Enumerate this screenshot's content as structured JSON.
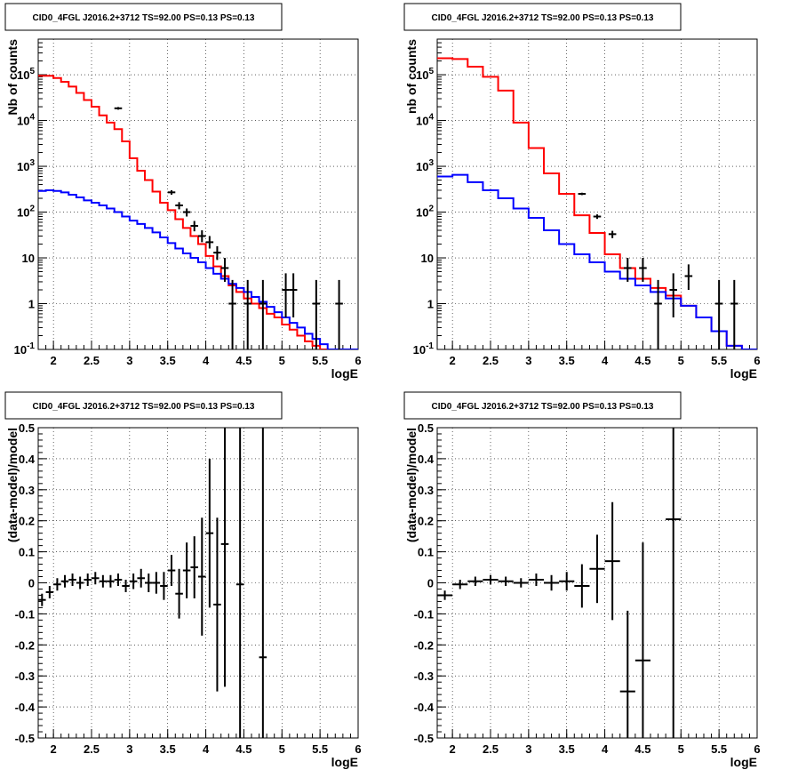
{
  "chart_data": [
    {
      "type": "line",
      "title": "CID0_4FGL J2016.2+3712 TS=92.00 PS=0.13 PS=0.13",
      "xlabel": "logE",
      "ylabel": "Nb of counts",
      "xlim": [
        1.8,
        6
      ],
      "ylim": [
        0.1,
        600000
      ],
      "yscale": "log",
      "grid": true,
      "x_ticks": [
        "2",
        "2.5",
        "3",
        "3.5",
        "4",
        "4.5",
        "5",
        "5.5",
        "6"
      ],
      "y_ticks": [
        "10^-1",
        "1",
        "10",
        "10^2",
        "10^3",
        "10^4",
        "10^5"
      ],
      "bin_edges": [
        1.8,
        1.9,
        2.0,
        2.1,
        2.2,
        2.3,
        2.4,
        2.5,
        2.6,
        2.7,
        2.8,
        2.9,
        3.0,
        3.1,
        3.2,
        3.3,
        3.4,
        3.5,
        3.6,
        3.7,
        3.8,
        3.9,
        4.0,
        4.1,
        4.2,
        4.3,
        4.4,
        4.5,
        4.6,
        4.7,
        4.8,
        4.9,
        5.0,
        5.1,
        5.2,
        5.3,
        5.4,
        5.5,
        5.6,
        5.7,
        5.8,
        5.9,
        6.0
      ],
      "series": [
        {
          "color": "#ff0000",
          "values": [
            95000,
            95000,
            85000,
            70000,
            55000,
            40000,
            28000,
            20000,
            13000,
            9000,
            6500,
            3500,
            1500,
            800,
            500,
            280,
            160,
            110,
            70,
            45,
            30,
            20,
            11,
            6.5,
            4.0,
            2.5,
            1.8,
            1.3,
            1.0,
            0.8,
            0.6,
            0.5,
            0.35,
            0.27,
            0.2,
            0.15,
            0.12,
            0.1,
            0.1,
            0.1,
            0.1,
            0.1
          ]
        },
        {
          "color": "#0000ff",
          "values": [
            290,
            300,
            290,
            270,
            240,
            210,
            180,
            160,
            140,
            120,
            100,
            80,
            65,
            55,
            45,
            36,
            28,
            21,
            16,
            12.5,
            10,
            8,
            6,
            4.5,
            3.5,
            2.7,
            2.2,
            1.8,
            1.4,
            1.1,
            0.85,
            0.65,
            0.5,
            0.38,
            0.3,
            0.22,
            0.17,
            0.13,
            0.1,
            0.1,
            0.1,
            0.1
          ]
        },
        {
          "style": "errorbar",
          "color": "#000000",
          "points": [
            {
              "x": 2.85,
              "y": 18500,
              "yerr_lo": 1200,
              "yerr_hi": 1200
            },
            {
              "x": 3.55,
              "y": 270,
              "yerr_lo": 30,
              "yerr_hi": 30
            },
            {
              "x": 3.65,
              "y": 140,
              "yerr_lo": 25,
              "yerr_hi": 25
            },
            {
              "x": 3.75,
              "y": 100,
              "yerr_lo": 20,
              "yerr_hi": 20
            },
            {
              "x": 3.85,
              "y": 50,
              "yerr_lo": 12,
              "yerr_hi": 14
            },
            {
              "x": 3.95,
              "y": 30,
              "yerr_lo": 8,
              "yerr_hi": 10
            },
            {
              "x": 4.05,
              "y": 22,
              "yerr_lo": 6,
              "yerr_hi": 8
            },
            {
              "x": 4.15,
              "y": 13,
              "yerr_lo": 4,
              "yerr_hi": 5
            },
            {
              "x": 4.25,
              "y": 6,
              "yerr_lo": 3,
              "yerr_hi": 4
            },
            {
              "x": 4.35,
              "y": 1,
              "yerr_lo": 0.95,
              "yerr_hi": 2.3
            },
            {
              "x": 4.55,
              "y": 1,
              "yerr_lo": 0.95,
              "yerr_hi": 2.3
            },
            {
              "x": 4.75,
              "y": 1,
              "yerr_lo": 0.95,
              "yerr_hi": 2.3
            },
            {
              "x": 5.05,
              "y": 2,
              "yerr_lo": 1.5,
              "yerr_hi": 2.6
            },
            {
              "x": 5.15,
              "y": 2,
              "yerr_lo": 1.5,
              "yerr_hi": 2.6
            },
            {
              "x": 5.45,
              "y": 1,
              "yerr_lo": 0.95,
              "yerr_hi": 2.3
            },
            {
              "x": 5.75,
              "y": 1,
              "yerr_lo": 0.95,
              "yerr_hi": 2.3
            }
          ]
        }
      ]
    },
    {
      "type": "line",
      "title": "CID0_4FGL J2016.2+3712 TS=92.00 PS=0.13 PS=0.13",
      "xlabel": "logE",
      "ylabel": "nb of counts",
      "xlim": [
        1.8,
        6
      ],
      "ylim": [
        0.1,
        600000
      ],
      "yscale": "log",
      "grid": true,
      "x_ticks": [
        "2",
        "2.5",
        "3",
        "3.5",
        "4",
        "4.5",
        "5",
        "5.5",
        "6"
      ],
      "y_ticks": [
        "10^-1",
        "1",
        "10",
        "10^2",
        "10^3",
        "10^4",
        "10^5"
      ],
      "bin_edges": [
        1.8,
        2.0,
        2.2,
        2.4,
        2.6,
        2.8,
        3.0,
        3.2,
        3.4,
        3.6,
        3.8,
        4.0,
        4.2,
        4.4,
        4.6,
        4.8,
        5.0,
        5.2,
        5.4,
        5.6,
        5.8,
        6.0
      ],
      "series": [
        {
          "color": "#ff0000",
          "values": [
            230000,
            220000,
            150000,
            90000,
            45000,
            9000,
            2500,
            700,
            250,
            85,
            35,
            12,
            6,
            3.5,
            2.2,
            1.5,
            0.9,
            0.5,
            0.25,
            0.12,
            0.1
          ]
        },
        {
          "color": "#0000ff",
          "values": [
            600,
            650,
            450,
            300,
            200,
            120,
            75,
            40,
            20,
            12,
            8,
            5,
            3.5,
            2.5,
            1.8,
            1.3,
            0.9,
            0.5,
            0.25,
            0.12,
            0.1
          ]
        },
        {
          "style": "errorbar",
          "color": "#000000",
          "points": [
            {
              "x": 3.7,
              "y": 250,
              "yerr_lo": 15,
              "yerr_hi": 15
            },
            {
              "x": 3.9,
              "y": 80,
              "yerr_lo": 9,
              "yerr_hi": 9
            },
            {
              "x": 4.1,
              "y": 33,
              "yerr_lo": 6,
              "yerr_hi": 6
            },
            {
              "x": 4.3,
              "y": 6,
              "yerr_lo": 3,
              "yerr_hi": 4
            },
            {
              "x": 4.5,
              "y": 6,
              "yerr_lo": 3,
              "yerr_hi": 4
            },
            {
              "x": 4.7,
              "y": 1,
              "yerr_lo": 0.95,
              "yerr_hi": 2.3
            },
            {
              "x": 4.9,
              "y": 2,
              "yerr_lo": 1.5,
              "yerr_hi": 2.6
            },
            {
              "x": 5.1,
              "y": 4,
              "yerr_lo": 2,
              "yerr_hi": 3.2
            },
            {
              "x": 5.5,
              "y": 1,
              "yerr_lo": 0.95,
              "yerr_hi": 2.3
            },
            {
              "x": 5.7,
              "y": 1,
              "yerr_lo": 0.95,
              "yerr_hi": 2.3
            }
          ]
        }
      ]
    },
    {
      "type": "scatter",
      "title": "CID0_4FGL J2016.2+3712 TS=92.00 PS=0.13 PS=0.13",
      "xlabel": "logE",
      "ylabel": "(data-model)/model",
      "xlim": [
        1.8,
        6
      ],
      "ylim": [
        -0.5,
        0.5
      ],
      "grid": true,
      "x_ticks": [
        "2",
        "2.5",
        "3",
        "3.5",
        "4",
        "4.5",
        "5",
        "5.5",
        "6"
      ],
      "y_ticks": [
        "-0.5",
        "-0.4",
        "-0.3",
        "-0.2",
        "-0.1",
        "0",
        "0.1",
        "0.2",
        "0.3",
        "0.4",
        "0.5"
      ],
      "series": [
        {
          "style": "errorbar",
          "color": "#000000",
          "xerr": 0.05,
          "points": [
            {
              "x": 1.85,
              "y": -0.055,
              "yerr": 0.02
            },
            {
              "x": 1.95,
              "y": -0.03,
              "yerr": 0.02
            },
            {
              "x": 2.05,
              "y": -0.005,
              "yerr": 0.02
            },
            {
              "x": 2.15,
              "y": 0.005,
              "yerr": 0.02
            },
            {
              "x": 2.25,
              "y": 0.01,
              "yerr": 0.02
            },
            {
              "x": 2.35,
              "y": 0.0,
              "yerr": 0.02
            },
            {
              "x": 2.45,
              "y": 0.01,
              "yerr": 0.02
            },
            {
              "x": 2.55,
              "y": 0.015,
              "yerr": 0.02
            },
            {
              "x": 2.65,
              "y": 0.005,
              "yerr": 0.02
            },
            {
              "x": 2.75,
              "y": 0.005,
              "yerr": 0.02
            },
            {
              "x": 2.85,
              "y": 0.01,
              "yerr": 0.02
            },
            {
              "x": 2.95,
              "y": -0.01,
              "yerr": 0.02
            },
            {
              "x": 3.05,
              "y": 0.005,
              "yerr": 0.025
            },
            {
              "x": 3.15,
              "y": 0.015,
              "yerr": 0.03
            },
            {
              "x": 3.25,
              "y": 0.0,
              "yerr": 0.03
            },
            {
              "x": 3.35,
              "y": 0.0,
              "yerr": 0.035
            },
            {
              "x": 3.45,
              "y": -0.01,
              "yerr": 0.045
            },
            {
              "x": 3.55,
              "y": 0.04,
              "yerr": 0.05
            },
            {
              "x": 3.65,
              "y": -0.035,
              "yerr": 0.08
            },
            {
              "x": 3.75,
              "y": 0.04,
              "yerr": 0.09
            },
            {
              "x": 3.85,
              "y": 0.05,
              "yerr": 0.1
            },
            {
              "x": 3.95,
              "y": 0.02,
              "yerr": 0.19
            },
            {
              "x": 4.05,
              "y": 0.16,
              "yerr": 0.24
            },
            {
              "x": 4.15,
              "y": -0.07,
              "yerr": 0.28
            },
            {
              "x": 4.25,
              "y": 0.125,
              "yerr": 0.46
            },
            {
              "x": 4.45,
              "y": -0.005,
              "yerr": 0.75
            },
            {
              "x": 4.75,
              "y": -0.24,
              "yerr": 0.9
            }
          ]
        }
      ]
    },
    {
      "type": "scatter",
      "title": "CID0_4FGL J2016.2+3712 TS=92.00 PS=0.13 PS=0.13",
      "xlabel": "logE",
      "ylabel": "(data-model)/model",
      "xlim": [
        1.8,
        6
      ],
      "ylim": [
        -0.5,
        0.5
      ],
      "grid": true,
      "x_ticks": [
        "2",
        "2.5",
        "3",
        "3.5",
        "4",
        "4.5",
        "5",
        "5.5",
        "6"
      ],
      "y_ticks": [
        "-0.5",
        "-0.4",
        "-0.3",
        "-0.2",
        "-0.1",
        "0",
        "0.1",
        "0.2",
        "0.3",
        "0.4",
        "0.5"
      ],
      "series": [
        {
          "style": "errorbar",
          "color": "#000000",
          "xerr": 0.1,
          "points": [
            {
              "x": 1.9,
              "y": -0.04,
              "yerr": 0.015
            },
            {
              "x": 2.1,
              "y": -0.005,
              "yerr": 0.015
            },
            {
              "x": 2.3,
              "y": 0.005,
              "yerr": 0.015
            },
            {
              "x": 2.5,
              "y": 0.01,
              "yerr": 0.015
            },
            {
              "x": 2.7,
              "y": 0.005,
              "yerr": 0.015
            },
            {
              "x": 2.9,
              "y": 0.0,
              "yerr": 0.015
            },
            {
              "x": 3.1,
              "y": 0.01,
              "yerr": 0.02
            },
            {
              "x": 3.3,
              "y": 0.0,
              "yerr": 0.025
            },
            {
              "x": 3.5,
              "y": 0.005,
              "yerr": 0.03
            },
            {
              "x": 3.7,
              "y": -0.01,
              "yerr": 0.07
            },
            {
              "x": 3.9,
              "y": 0.045,
              "yerr": 0.11
            },
            {
              "x": 4.1,
              "y": 0.07,
              "yerr": 0.19
            },
            {
              "x": 4.3,
              "y": -0.35,
              "yerr": 0.26
            },
            {
              "x": 4.5,
              "y": -0.25,
              "yerr": 0.38
            },
            {
              "x": 4.9,
              "y": 0.205,
              "yerr": 0.8
            }
          ]
        }
      ]
    }
  ]
}
